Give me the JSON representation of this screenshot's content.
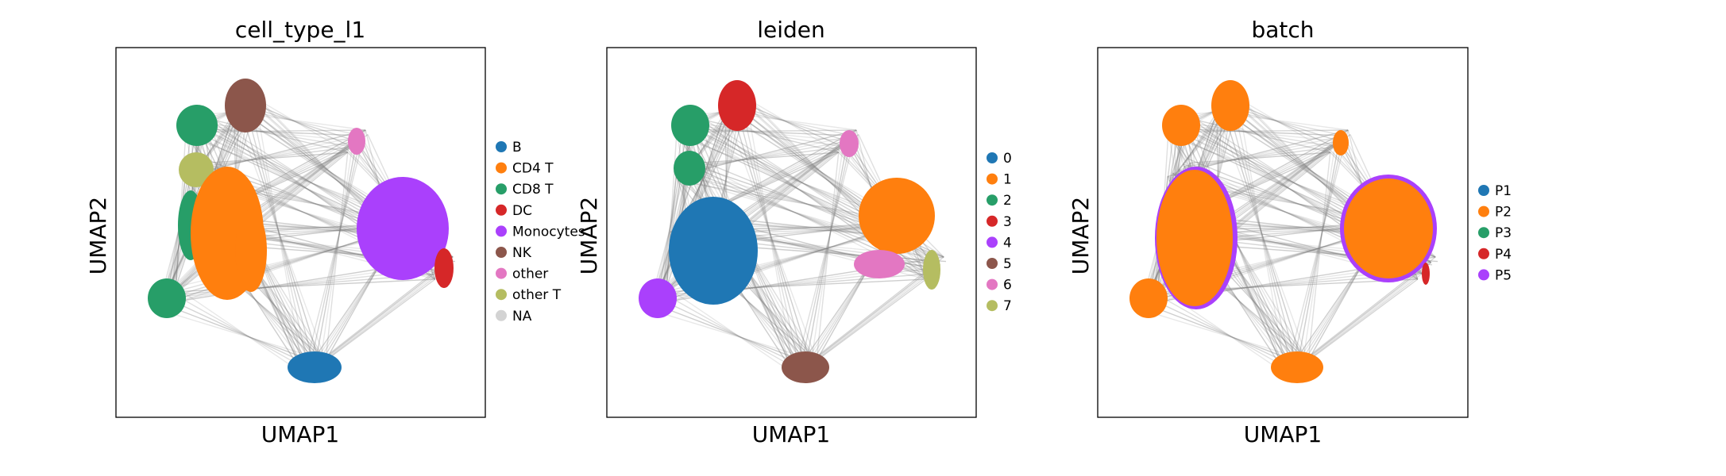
{
  "colors": {
    "edge": "#808080",
    "c0": "#1f77b4",
    "c1": "#ff7f0e",
    "c2": "#279e68",
    "c3": "#d62728",
    "c4": "#aa40fc",
    "c5": "#8c564b",
    "c6": "#e377c2",
    "c7": "#b5bd61",
    "na": "#d3d3d3"
  },
  "chart_data": [
    {
      "type": "scatter",
      "title": "cell_type_l1",
      "xlabel": "UMAP1",
      "ylabel": "UMAP2",
      "grid": false,
      "legend_position": "right",
      "legend": [
        {
          "label": "B",
          "color": "#1f77b4"
        },
        {
          "label": "CD4 T",
          "color": "#ff7f0e"
        },
        {
          "label": "CD8 T",
          "color": "#279e68"
        },
        {
          "label": "DC",
          "color": "#d62728"
        },
        {
          "label": "Monocytes",
          "color": "#aa40fc"
        },
        {
          "label": "NK",
          "color": "#8c564b"
        },
        {
          "label": "other",
          "color": "#e377c2"
        },
        {
          "label": "other T",
          "color": "#b5bd61"
        },
        {
          "label": "NA",
          "color": "#d3d3d3"
        }
      ]
    },
    {
      "type": "scatter",
      "title": "leiden",
      "xlabel": "UMAP1",
      "ylabel": "UMAP2",
      "grid": false,
      "legend_position": "right",
      "legend": [
        {
          "label": "0",
          "color": "#1f77b4"
        },
        {
          "label": "1",
          "color": "#ff7f0e"
        },
        {
          "label": "2",
          "color": "#279e68"
        },
        {
          "label": "3",
          "color": "#d62728"
        },
        {
          "label": "4",
          "color": "#aa40fc"
        },
        {
          "label": "5",
          "color": "#8c564b"
        },
        {
          "label": "6",
          "color": "#e377c2"
        },
        {
          "label": "7",
          "color": "#b5bd61"
        }
      ]
    },
    {
      "type": "scatter",
      "title": "batch",
      "xlabel": "UMAP1",
      "ylabel": "UMAP2",
      "grid": false,
      "legend_position": "right",
      "legend": [
        {
          "label": "P1",
          "color": "#1f77b4"
        },
        {
          "label": "P2",
          "color": "#ff7f0e"
        },
        {
          "label": "P3",
          "color": "#279e68"
        },
        {
          "label": "P4",
          "color": "#d62728"
        },
        {
          "label": "P5",
          "color": "#aa40fc"
        }
      ]
    }
  ]
}
